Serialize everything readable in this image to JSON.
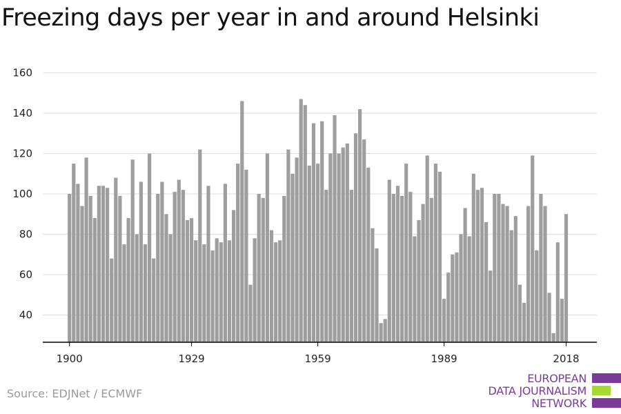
{
  "title": "Freezing days per year in and around Helsinki",
  "source": "Source: EDJNet / ECMWF",
  "logo": {
    "lines": [
      "EUROPEAN",
      "DATA JOURNALISM",
      "NETWORK"
    ],
    "colors": {
      "purple": "#7a3a9a",
      "green": "#a8d832"
    }
  },
  "chart_data": {
    "type": "bar",
    "x_start": 1900,
    "x_end": 2018,
    "x_ticks": [
      1900,
      1929,
      1959,
      1989,
      2018
    ],
    "y_ticks": [
      40,
      60,
      80,
      100,
      120,
      140,
      160
    ],
    "ylim": [
      26,
      162
    ],
    "grid": true,
    "bar_color": "#9e9e9e",
    "values": [
      100,
      115,
      105,
      94,
      118,
      99,
      88,
      104,
      104,
      103,
      68,
      108,
      99,
      75,
      88,
      117,
      80,
      106,
      75,
      120,
      68,
      100,
      106,
      90,
      80,
      101,
      107,
      102,
      87,
      88,
      77,
      122,
      75,
      104,
      72,
      78,
      76,
      105,
      77,
      92,
      115,
      146,
      112,
      55,
      78,
      100,
      98,
      120,
      82,
      76,
      77,
      99,
      122,
      110,
      118,
      147,
      144,
      114,
      135,
      115,
      136,
      102,
      120,
      139,
      120,
      123,
      125,
      102,
      130,
      142,
      127,
      113,
      83,
      73,
      36,
      38,
      107,
      100,
      104,
      99,
      115,
      101,
      79,
      87,
      95,
      119,
      98,
      115,
      111,
      48,
      61,
      70,
      71,
      80,
      93,
      79,
      110,
      102,
      103,
      86,
      62,
      100,
      100,
      95,
      94,
      82,
      89,
      55,
      46,
      94,
      119,
      72,
      100,
      94,
      51,
      31,
      76,
      48,
      90
    ]
  }
}
